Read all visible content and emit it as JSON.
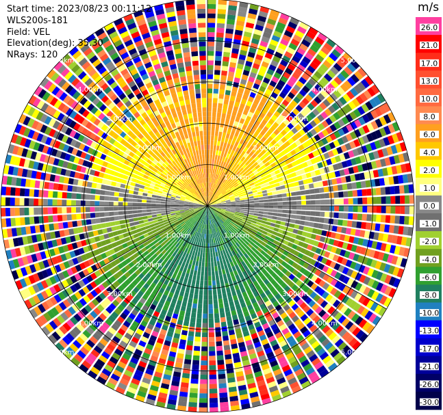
{
  "header": {
    "start_time": "Start time: 2023/08/23 00:11:12",
    "instrument": "WLS200s-181",
    "field": "Field: VEL",
    "elevation": "Elevation(deg): 35.30",
    "nrays": "NRays: 120"
  },
  "colorbar": {
    "unit": "m/s",
    "ticks": [
      "26.0",
      "21.0",
      "17.0",
      "13.0",
      "10.0",
      "8.0",
      "6.0",
      "4.0",
      "2.0",
      "1.0",
      "0.0",
      "-1.0",
      "-2.0",
      "-4.0",
      "-6.0",
      "-8.0",
      "-10.0",
      "-13.0",
      "-17.0",
      "-21.0",
      "-26.0",
      "-30.0"
    ],
    "colors": [
      "#ff3fa0",
      "#ff0000",
      "#ff2d1a",
      "#ff5030",
      "#ff6a40",
      "#ff8a50",
      "#ffa020",
      "#ffc800",
      "#ffff00",
      "#ffff80",
      "#888888",
      "#707070",
      "#a0d030",
      "#70a020",
      "#30a030",
      "#208060",
      "#2080c0",
      "#0000ff",
      "#0000cc",
      "#000099",
      "#000066",
      "#00004a"
    ]
  },
  "chart_data": {
    "type": "heatmap",
    "subtype": "polar-ppi",
    "field": "VEL",
    "unit": "m/s",
    "nrays": 120,
    "range_rings_km": [
      1,
      2,
      3,
      4,
      5
    ],
    "ring_labels": [
      "1.00km",
      "2.00km",
      "3.00km",
      "4.00km",
      "5.00km"
    ],
    "max_range_km": 5.0,
    "color_levels": [
      26.0,
      21.0,
      17.0,
      13.0,
      10.0,
      8.0,
      6.0,
      4.0,
      2.0,
      1.0,
      0.0,
      -1.0,
      -2.0,
      -4.0,
      -6.0,
      -8.0,
      -10.0,
      -13.0,
      -17.0,
      -21.0,
      -26.0,
      -30.0
    ],
    "pattern": "northern sector positive (approx. 4 to 8 m/s), southern sector negative (approx. -2 to -8 m/s), noise beyond about 3 km"
  }
}
